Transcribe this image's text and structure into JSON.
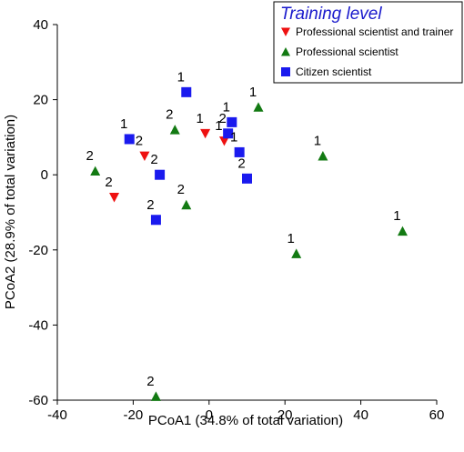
{
  "chart_data": {
    "type": "scatter",
    "xlabel": "PCoA1 (34.8% of total variation)",
    "ylabel": "PCoA2 (28.9% of total variation)",
    "xlim": [
      -40,
      60
    ],
    "ylim": [
      -60,
      40
    ],
    "xticks": [
      -40,
      -20,
      0,
      20,
      40,
      60
    ],
    "yticks": [
      40,
      20,
      0,
      -20,
      -40,
      -60
    ],
    "grid": false,
    "legend": {
      "title": "Training level",
      "title_color": "#1a1acc",
      "placement": "top-right"
    },
    "series": [
      {
        "name": "Professional scientist and trainer",
        "marker": "triangle-down",
        "color": "#ee1111",
        "points": [
          {
            "x": -25,
            "y": -6,
            "label": "2"
          },
          {
            "x": -17,
            "y": 5,
            "label": "2"
          },
          {
            "x": -1,
            "y": 11,
            "label": "1"
          },
          {
            "x": 4,
            "y": 9,
            "label": "1"
          }
        ]
      },
      {
        "name": "Professional scientist",
        "marker": "triangle-up",
        "color": "#137a13",
        "points": [
          {
            "x": -30,
            "y": 1,
            "label": "2"
          },
          {
            "x": -9,
            "y": 12,
            "label": "2"
          },
          {
            "x": -6,
            "y": -8,
            "label": "2"
          },
          {
            "x": 13,
            "y": 18,
            "label": "1"
          },
          {
            "x": 23,
            "y": -21,
            "label": "1"
          },
          {
            "x": 30,
            "y": 5,
            "label": "1"
          },
          {
            "x": 51,
            "y": -15,
            "label": "1"
          },
          {
            "x": -14,
            "y": -59,
            "label": "2"
          }
        ]
      },
      {
        "name": "Citizen scientist",
        "marker": "square",
        "color": "#1a1aee",
        "points": [
          {
            "x": -21,
            "y": 9.5,
            "label": "1"
          },
          {
            "x": -6,
            "y": 22,
            "label": "1"
          },
          {
            "x": -13,
            "y": 0,
            "label": "2"
          },
          {
            "x": -14,
            "y": -12,
            "label": "2"
          },
          {
            "x": 6,
            "y": 14,
            "label": "1"
          },
          {
            "x": 5,
            "y": 11,
            "label": "2"
          },
          {
            "x": 8,
            "y": 6,
            "label": "1"
          },
          {
            "x": 10,
            "y": -1,
            "label": "2"
          }
        ]
      }
    ]
  }
}
